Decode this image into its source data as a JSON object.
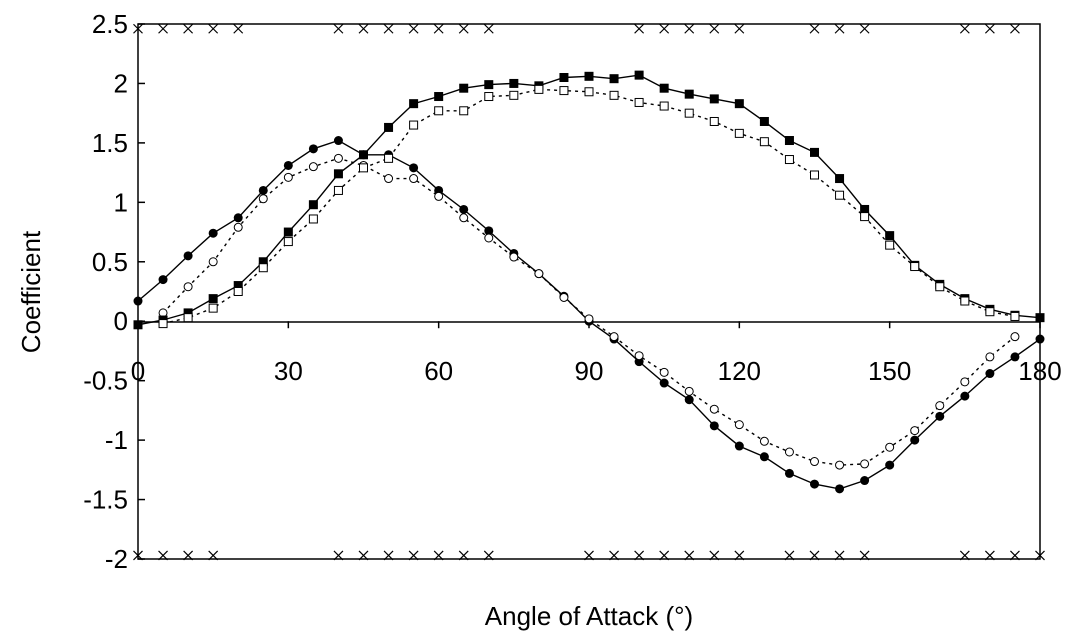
{
  "chart_data": {
    "type": "line",
    "title": "",
    "xlabel": "Angle of Attack (°)",
    "ylabel": "Coefficient",
    "xlim": [
      0,
      180
    ],
    "ylim": [
      -2,
      2.5
    ],
    "xticks": [
      0,
      30,
      60,
      90,
      120,
      150,
      180
    ],
    "xtick_labels": [
      "0",
      "30",
      "60",
      "90",
      "120",
      "150",
      "180"
    ],
    "yticks": [
      -2,
      -1.5,
      -1,
      -0.5,
      0,
      0.5,
      1,
      1.5,
      2,
      2.5
    ],
    "ytick_labels": [
      "-2",
      "-1.5",
      "-1",
      "-0.5",
      "0",
      "0.5",
      "1",
      "1.5",
      "2",
      "2.5"
    ],
    "grid": false,
    "legend": "none",
    "series": [
      {
        "marker": "filled-circle",
        "line": "solid",
        "color": "#000000",
        "x": [
          0,
          5,
          10,
          15,
          20,
          25,
          30,
          35,
          40,
          45,
          50,
          55,
          60,
          65,
          70,
          75,
          80,
          85,
          90,
          95,
          100,
          105,
          110,
          115,
          120,
          125,
          130,
          135,
          140,
          145,
          150,
          155,
          160,
          165,
          170,
          175,
          180
        ],
        "y": [
          0.17,
          0.35,
          0.55,
          0.74,
          0.87,
          1.1,
          1.31,
          1.45,
          1.52,
          1.4,
          1.4,
          1.29,
          1.1,
          0.94,
          0.76,
          0.57,
          0.4,
          0.21,
          0.0,
          -0.15,
          -0.34,
          -0.52,
          -0.66,
          -0.88,
          -1.05,
          -1.14,
          -1.28,
          -1.37,
          -1.41,
          -1.34,
          -1.21,
          -1.0,
          -0.8,
          -0.63,
          -0.44,
          -0.3,
          -0.15
        ]
      },
      {
        "marker": "open-circle",
        "line": "dotted",
        "color": "#000000",
        "x": [
          5,
          10,
          15,
          20,
          25,
          30,
          35,
          40,
          45,
          50,
          55,
          60,
          65,
          70,
          75,
          80,
          85,
          90,
          95,
          100,
          105,
          110,
          115,
          120,
          125,
          130,
          135,
          140,
          145,
          150,
          155,
          160,
          165,
          170,
          175
        ],
        "y": [
          0.07,
          0.29,
          0.5,
          0.79,
          1.03,
          1.21,
          1.3,
          1.37,
          1.31,
          1.2,
          1.2,
          1.05,
          0.87,
          0.7,
          0.54,
          0.4,
          0.2,
          0.02,
          -0.13,
          -0.29,
          -0.43,
          -0.59,
          -0.74,
          -0.87,
          -1.01,
          -1.1,
          -1.18,
          -1.21,
          -1.2,
          -1.06,
          -0.92,
          -0.71,
          -0.51,
          -0.3,
          -0.13
        ]
      },
      {
        "marker": "filled-square",
        "line": "solid",
        "color": "#000000",
        "x": [
          0,
          5,
          10,
          15,
          20,
          25,
          30,
          35,
          40,
          45,
          50,
          55,
          60,
          65,
          70,
          75,
          80,
          85,
          90,
          95,
          100,
          105,
          110,
          115,
          120,
          125,
          130,
          135,
          140,
          145,
          150,
          155,
          160,
          165,
          170,
          175,
          180
        ],
        "y": [
          -0.03,
          0.01,
          0.07,
          0.19,
          0.3,
          0.5,
          0.75,
          0.98,
          1.24,
          1.4,
          1.63,
          1.83,
          1.89,
          1.96,
          1.99,
          2.0,
          1.98,
          2.05,
          2.06,
          2.04,
          2.07,
          1.96,
          1.91,
          1.87,
          1.83,
          1.68,
          1.52,
          1.42,
          1.2,
          0.94,
          0.72,
          0.47,
          0.31,
          0.19,
          0.1,
          0.05,
          0.03
        ]
      },
      {
        "marker": "open-square",
        "line": "dotted",
        "color": "#000000",
        "x": [
          5,
          10,
          15,
          20,
          25,
          30,
          35,
          40,
          45,
          50,
          55,
          60,
          65,
          70,
          75,
          80,
          85,
          90,
          95,
          100,
          105,
          110,
          115,
          120,
          125,
          130,
          135,
          140,
          145,
          150,
          155,
          160,
          165,
          170,
          175
        ],
        "y": [
          -0.02,
          0.03,
          0.11,
          0.25,
          0.45,
          0.67,
          0.86,
          1.1,
          1.29,
          1.37,
          1.65,
          1.77,
          1.77,
          1.89,
          1.9,
          1.95,
          1.94,
          1.93,
          1.9,
          1.84,
          1.81,
          1.75,
          1.68,
          1.58,
          1.51,
          1.36,
          1.23,
          1.06,
          0.88,
          0.64,
          0.46,
          0.29,
          0.17,
          0.08,
          0.04
        ]
      }
    ],
    "cross_markers": {
      "top_y": 2.46,
      "top_x": [
        0,
        5,
        10,
        15,
        20,
        40,
        45,
        50,
        55,
        60,
        65,
        70,
        100,
        105,
        110,
        115,
        120,
        135,
        140,
        145,
        165,
        170,
        175
      ],
      "bottom_y": -1.97,
      "bottom_x": [
        0,
        5,
        10,
        15,
        40,
        45,
        50,
        55,
        60,
        65,
        70,
        90,
        95,
        100,
        105,
        110,
        115,
        120,
        130,
        135,
        140,
        145,
        165,
        170,
        175,
        180
      ]
    }
  }
}
